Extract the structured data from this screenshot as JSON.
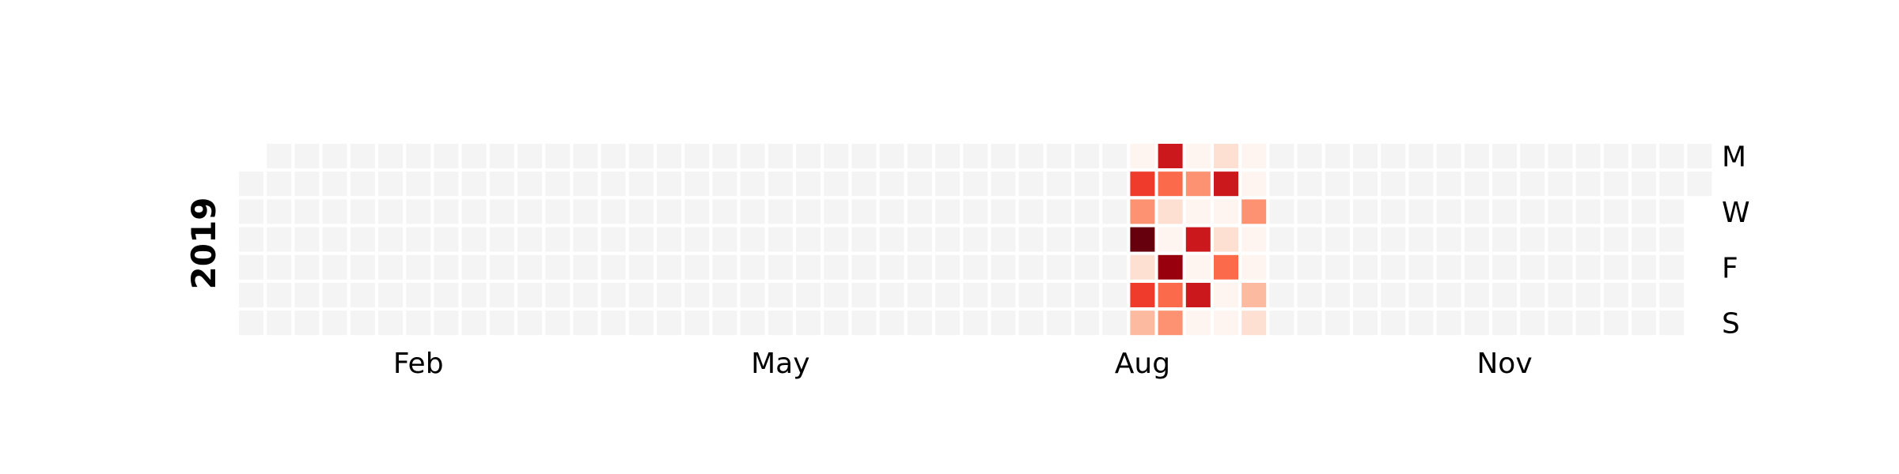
{
  "chart_data": {
    "type": "heatmap",
    "title": "",
    "year_label": "2019",
    "month_labels": [
      {
        "label": "Feb",
        "month_start_day": 31
      },
      {
        "label": "May",
        "month_start_day": 120
      },
      {
        "label": "Aug",
        "month_start_day": 212
      },
      {
        "label": "Nov",
        "month_start_day": 304
      }
    ],
    "weekday_labels": [
      {
        "label": "M",
        "row": 0
      },
      {
        "label": "W",
        "row": 2
      },
      {
        "label": "F",
        "row": 4
      },
      {
        "label": "S",
        "row": 6
      }
    ],
    "first_day_weekday": 1,
    "total_days": 365,
    "empty_color": "#f4f4f4",
    "colorscale": [
      "#fff5f0",
      "#fee0d2",
      "#fcbba1",
      "#fc9272",
      "#fb6a4a",
      "#ef3b2c",
      "#cb181d",
      "#99000d",
      "#67000d"
    ],
    "value_range": [
      0,
      8
    ],
    "active_weeks": [
      {
        "week": 32,
        "values": [
          0,
          5,
          3,
          8,
          1,
          5,
          2
        ]
      },
      {
        "week": 33,
        "values": [
          6,
          4,
          1,
          0,
          7,
          4,
          3
        ]
      },
      {
        "week": 34,
        "values": [
          0,
          3,
          0,
          6,
          0,
          6,
          0
        ]
      },
      {
        "week": 35,
        "values": [
          1,
          6,
          0,
          1,
          4,
          0,
          0
        ]
      },
      {
        "week": 36,
        "values": [
          0,
          0,
          3,
          0,
          0,
          2,
          1
        ]
      }
    ]
  }
}
